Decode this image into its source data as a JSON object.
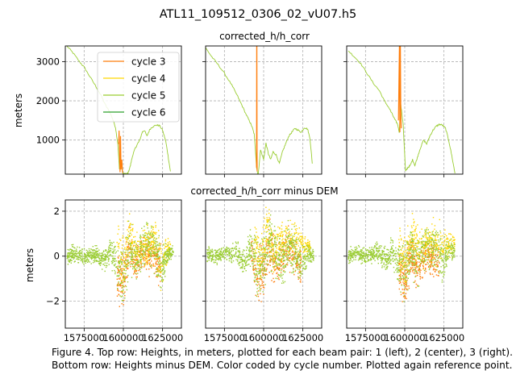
{
  "figure": {
    "title": "ATL11_109512_0306_02_vU07.h5",
    "caption": "Figure 4. Top row: Heights, in meters, plotted for each beam pair: 1 (left), 2 (center), 3 (right). Bottom row: Heights minus DEM. Color coded by cycle number. Plotted again reference point."
  },
  "chart_data": [
    {
      "type": "line",
      "row_title": "corrected_h/h_corr",
      "ylabel": "meters",
      "xlabel": "",
      "xlim": [
        1563000,
        1637000
      ],
      "ylim": [
        130,
        3400
      ],
      "x_ticks": [
        1575000,
        1600000,
        1625000
      ],
      "y_ticks": [
        1000,
        2000,
        3000
      ],
      "grid": true,
      "legend": {
        "placement": "upper-center",
        "entries": [
          "cycle 3",
          "cycle 4",
          "cycle 5",
          "cycle 6"
        ]
      },
      "series_colors": {
        "cycle 3": "#ff7f0e",
        "cycle 4": "#ffd700",
        "cycle 5": "#9acd32",
        "cycle 6": "#2ca02c"
      },
      "panels": [
        {
          "beam_pair": 1,
          "series": [
            {
              "name": "cycle 5",
              "x": [
                1564000,
                1568000,
                1572000,
                1575000,
                1578000,
                1582000,
                1586000,
                1589000,
                1591000,
                1593000,
                1595000,
                1596500,
                1597500,
                1598500,
                1599500,
                1600500,
                1601500,
                1603000,
                1604500,
                1606000,
                1607500,
                1609000,
                1610500,
                1612000,
                1613500,
                1615000,
                1617000,
                1619000,
                1621000,
                1623000,
                1625000,
                1627000,
                1628500,
                1630000
              ],
              "y": [
                3400,
                3220,
                3000,
                2860,
                2660,
                2400,
                2120,
                1860,
                1740,
                1560,
                1320,
                900,
                250,
                500,
                160,
                140,
                130,
                160,
                350,
                620,
                780,
                900,
                1000,
                1200,
                1250,
                1100,
                1280,
                1350,
                1380,
                1370,
                1250,
                980,
                600,
                200
              ]
            },
            {
              "name": "cycle 3",
              "x": [
                1597000,
                1597300,
                1597600,
                1597900,
                1598200,
                1598500,
                1599000,
                1599500
              ],
              "y": [
                900,
                1240,
                600,
                180,
                1100,
                250,
                500,
                160
              ]
            }
          ]
        },
        {
          "beam_pair": 2,
          "series": [
            {
              "name": "cycle 5",
              "x": [
                1563000,
                1567000,
                1571000,
                1575000,
                1579000,
                1583000,
                1586000,
                1589000,
                1591000,
                1592500,
                1594000,
                1595500,
                1596500,
                1598000,
                1600000,
                1601500,
                1603000,
                1604500,
                1606000,
                1608000,
                1610000,
                1612000,
                1614000,
                1616000,
                1618000,
                1620000,
                1622000,
                1624000,
                1626000,
                1628000,
                1629500,
                1631000
              ],
              "y": [
                3350,
                3120,
                2920,
                2700,
                2450,
                2150,
                1900,
                1640,
                1480,
                1350,
                1150,
                300,
                100,
                750,
                500,
                920,
                650,
                500,
                700,
                620,
                400,
                700,
                900,
                1100,
                1200,
                1300,
                1250,
                1200,
                1320,
                1280,
                1050,
                400
              ]
            },
            {
              "name": "cycle 3",
              "x": [
                1595500,
                1595600,
                1595700,
                1595800,
                1595900
              ],
              "y": [
                300,
                3400,
                3400,
                800,
                200
              ]
            }
          ]
        },
        {
          "beam_pair": 3,
          "series": [
            {
              "name": "cycle 5",
              "x": [
                1564000,
                1568000,
                1572000,
                1576000,
                1580000,
                1584000,
                1587000,
                1590000,
                1592000,
                1594000,
                1595500,
                1596500,
                1597500,
                1599000,
                1600500,
                1602000,
                1603500,
                1605000,
                1606500,
                1608000,
                1610000,
                1612000,
                1614000,
                1616000,
                1618000,
                1620000,
                1622000,
                1624000,
                1626000,
                1628000,
                1630000,
                1632000
              ],
              "y": [
                3280,
                3120,
                2950,
                2700,
                2450,
                2250,
                2000,
                1820,
                1660,
                1500,
                1400,
                1200,
                1900,
                1400,
                200,
                300,
                350,
                500,
                350,
                550,
                800,
                1000,
                900,
                1100,
                1250,
                1350,
                1400,
                1380,
                1300,
                1000,
                600,
                150
              ]
            },
            {
              "name": "cycle 3",
              "x": [
                1596000,
                1596300,
                1596600,
                1596900,
                1597200,
                1597500,
                1597800
              ],
              "y": [
                1500,
                2500,
                3400,
                1200,
                3400,
                1700,
                1300
              ]
            }
          ]
        }
      ]
    },
    {
      "type": "scatter",
      "row_title": "corrected_h/h_corr minus DEM",
      "ylabel": "meters",
      "xlabel": "",
      "xlim": [
        1563000,
        1637000
      ],
      "ylim": [
        -3.2,
        2.5
      ],
      "x_ticks": [
        1575000,
        1600000,
        1625000
      ],
      "x_tick_labels": [
        "1575000",
        "1600000",
        "1625000"
      ],
      "y_ticks": [
        -2,
        0,
        2
      ],
      "y_tick_labels": [
        "−2",
        "0",
        "2"
      ],
      "grid": true,
      "series_colors": {
        "cycle 3": "#ff7f0e",
        "cycle 4": "#ffd700",
        "cycle 5": "#9acd32",
        "cycle 6": "#2ca02c"
      },
      "panels": [
        {
          "beam_pair": 1,
          "series": [
            {
              "name": "cycle 5",
              "x": [
                1564000,
                1570000,
                1576000,
                1582000,
                1588000,
                1592000,
                1596000,
                1600000,
                1604000,
                1608000,
                1612000,
                1616000,
                1620000,
                1624000,
                1628000,
                1632000
              ],
              "y": [
                0.0,
                0.1,
                0.0,
                0.1,
                -0.2,
                0.3,
                -0.5,
                -1.0,
                0.5,
                -0.2,
                0.2,
                0.6,
                0.3,
                -0.5,
                0.1,
                0.2
              ],
              "spread": [
                0.5,
                0.5,
                0.5,
                0.5,
                0.6,
                0.8,
                1.5,
                2.0,
                1.5,
                1.3,
                1.2,
                1.5,
                1.3,
                1.5,
                0.6,
                0.4
              ]
            },
            {
              "name": "cycle 3",
              "x": [
                1596000,
                1600000,
                1604000,
                1608000,
                1612000,
                1620000,
                1624000
              ],
              "y": [
                -0.8,
                -1.2,
                0.3,
                -0.4,
                0.2,
                0.1,
                -0.6
              ],
              "spread": [
                1.4,
                1.8,
                1.4,
                1.2,
                1.0,
                1.2,
                1.4
              ]
            },
            {
              "name": "cycle 4",
              "x": [
                1596000,
                1600000,
                1604000,
                1608000,
                1620000,
                1624000,
                1630000
              ],
              "y": [
                0.6,
                -0.6,
                0.9,
                0.2,
                0.7,
                -0.3,
                0.4
              ],
              "spread": [
                1.3,
                1.8,
                1.4,
                1.2,
                1.2,
                1.5,
                0.5
              ]
            }
          ]
        },
        {
          "beam_pair": 2,
          "series": [
            {
              "name": "cycle 5",
              "x": [
                1564000,
                1570000,
                1576000,
                1582000,
                1588000,
                1592000,
                1596000,
                1600000,
                1604000,
                1608000,
                1612000,
                1616000,
                1620000,
                1624000,
                1628000,
                1632000
              ],
              "y": [
                0.1,
                0.0,
                0.1,
                0.2,
                -0.3,
                0.4,
                -0.6,
                -0.4,
                0.8,
                0.2,
                -0.3,
                0.5,
                0.2,
                -0.4,
                0.1,
                0.0
              ],
              "spread": [
                0.5,
                0.5,
                0.5,
                0.7,
                0.8,
                1.0,
                1.8,
                2.0,
                1.8,
                1.5,
                1.5,
                1.5,
                1.3,
                1.4,
                0.6,
                0.4
              ]
            },
            {
              "name": "cycle 3",
              "x": [
                1592000,
                1596000,
                1600000,
                1604000,
                1608000,
                1616000,
                1624000
              ],
              "y": [
                0.2,
                -1.0,
                -0.8,
                0.5,
                -0.5,
                0.3,
                -0.5
              ],
              "spread": [
                0.9,
                1.6,
                1.8,
                1.5,
                1.3,
                1.2,
                1.2
              ]
            },
            {
              "name": "cycle 4",
              "x": [
                1594000,
                1598000,
                1602000,
                1606000,
                1612000,
                1620000,
                1630000
              ],
              "y": [
                0.7,
                -0.2,
                1.2,
                0.5,
                0.6,
                0.8,
                0.3
              ],
              "spread": [
                1.2,
                1.8,
                1.5,
                1.3,
                1.2,
                1.2,
                0.5
              ]
            }
          ]
        },
        {
          "beam_pair": 3,
          "series": [
            {
              "name": "cycle 5",
              "x": [
                1564000,
                1570000,
                1576000,
                1582000,
                1588000,
                1592000,
                1596000,
                1600000,
                1604000,
                1608000,
                1612000,
                1616000,
                1620000,
                1624000,
                1628000,
                1632000
              ],
              "y": [
                0.0,
                0.1,
                0.0,
                0.2,
                -0.2,
                0.3,
                -0.4,
                -0.8,
                0.4,
                -0.3,
                0.3,
                0.4,
                0.5,
                -0.3,
                0.3,
                0.2
              ],
              "spread": [
                0.5,
                0.5,
                0.5,
                0.6,
                0.7,
                0.9,
                1.5,
                1.9,
                1.5,
                1.4,
                1.3,
                1.5,
                1.4,
                1.4,
                0.7,
                0.5
              ]
            },
            {
              "name": "cycle 3",
              "x": [
                1596000,
                1600000,
                1604000,
                1608000,
                1614000,
                1622000
              ],
              "y": [
                -0.6,
                -1.3,
                0.2,
                -0.6,
                0.1,
                -0.4
              ],
              "spread": [
                1.3,
                1.7,
                1.3,
                1.2,
                1.0,
                1.2
              ]
            },
            {
              "name": "cycle 4",
              "x": [
                1596000,
                1600000,
                1604000,
                1610000,
                1618000,
                1626000,
                1632000
              ],
              "y": [
                0.5,
                -0.5,
                0.9,
                0.3,
                0.7,
                0.6,
                0.5
              ],
              "spread": [
                1.3,
                1.7,
                1.4,
                1.2,
                1.3,
                1.2,
                0.6
              ]
            }
          ]
        }
      ]
    }
  ]
}
